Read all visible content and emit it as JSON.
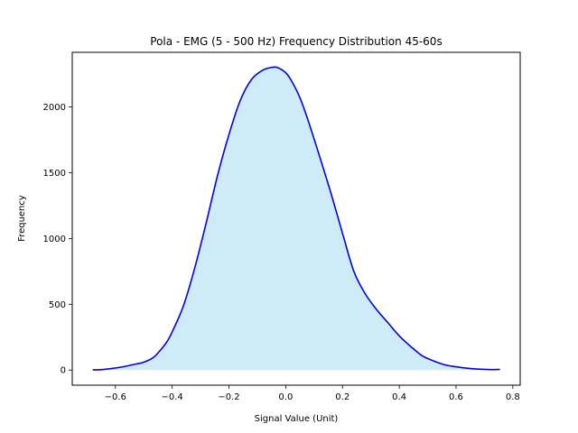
{
  "chart_data": {
    "type": "area",
    "title": "Pola - EMG (5 - 500 Hz) Frequency Distribution 45-60s",
    "xlabel": "Signal Value (Unit)",
    "ylabel": "Frequency",
    "xlim": [
      -0.752,
      0.826
    ],
    "ylim": [
      -115,
      2415
    ],
    "xticks": [
      -0.6,
      -0.4,
      -0.2,
      0.0,
      0.2,
      0.4,
      0.6,
      0.8
    ],
    "xtick_labels": [
      "−0.6",
      "−0.4",
      "−0.2",
      "0.0",
      "0.2",
      "0.4",
      "0.6",
      "0.8"
    ],
    "yticks": [
      0,
      500,
      1000,
      1500,
      2000
    ],
    "ytick_labels": [
      "0",
      "500",
      "1000",
      "1500",
      "2000"
    ],
    "grid": false,
    "line_color": "#0000ff",
    "fill_color": "#87ceeb",
    "fill_alpha": 0.4,
    "x": [
      -0.68,
      -0.66,
      -0.62,
      -0.58,
      -0.54,
      -0.5,
      -0.47,
      -0.45,
      -0.42,
      -0.4,
      -0.36,
      -0.32,
      -0.28,
      -0.24,
      -0.2,
      -0.16,
      -0.12,
      -0.08,
      -0.05,
      -0.03,
      0.0,
      0.02,
      0.05,
      0.08,
      0.12,
      0.16,
      0.2,
      0.24,
      0.28,
      0.32,
      0.36,
      0.4,
      0.44,
      0.48,
      0.52,
      0.56,
      0.6,
      0.64,
      0.68,
      0.72,
      0.755
    ],
    "y": [
      2,
      2,
      10,
      22,
      40,
      60,
      90,
      130,
      210,
      290,
      490,
      780,
      1120,
      1480,
      1790,
      2050,
      2210,
      2280,
      2300,
      2300,
      2260,
      2200,
      2070,
      1890,
      1620,
      1340,
      1040,
      750,
      580,
      460,
      360,
      260,
      180,
      110,
      70,
      40,
      25,
      14,
      7,
      4,
      5
    ]
  }
}
